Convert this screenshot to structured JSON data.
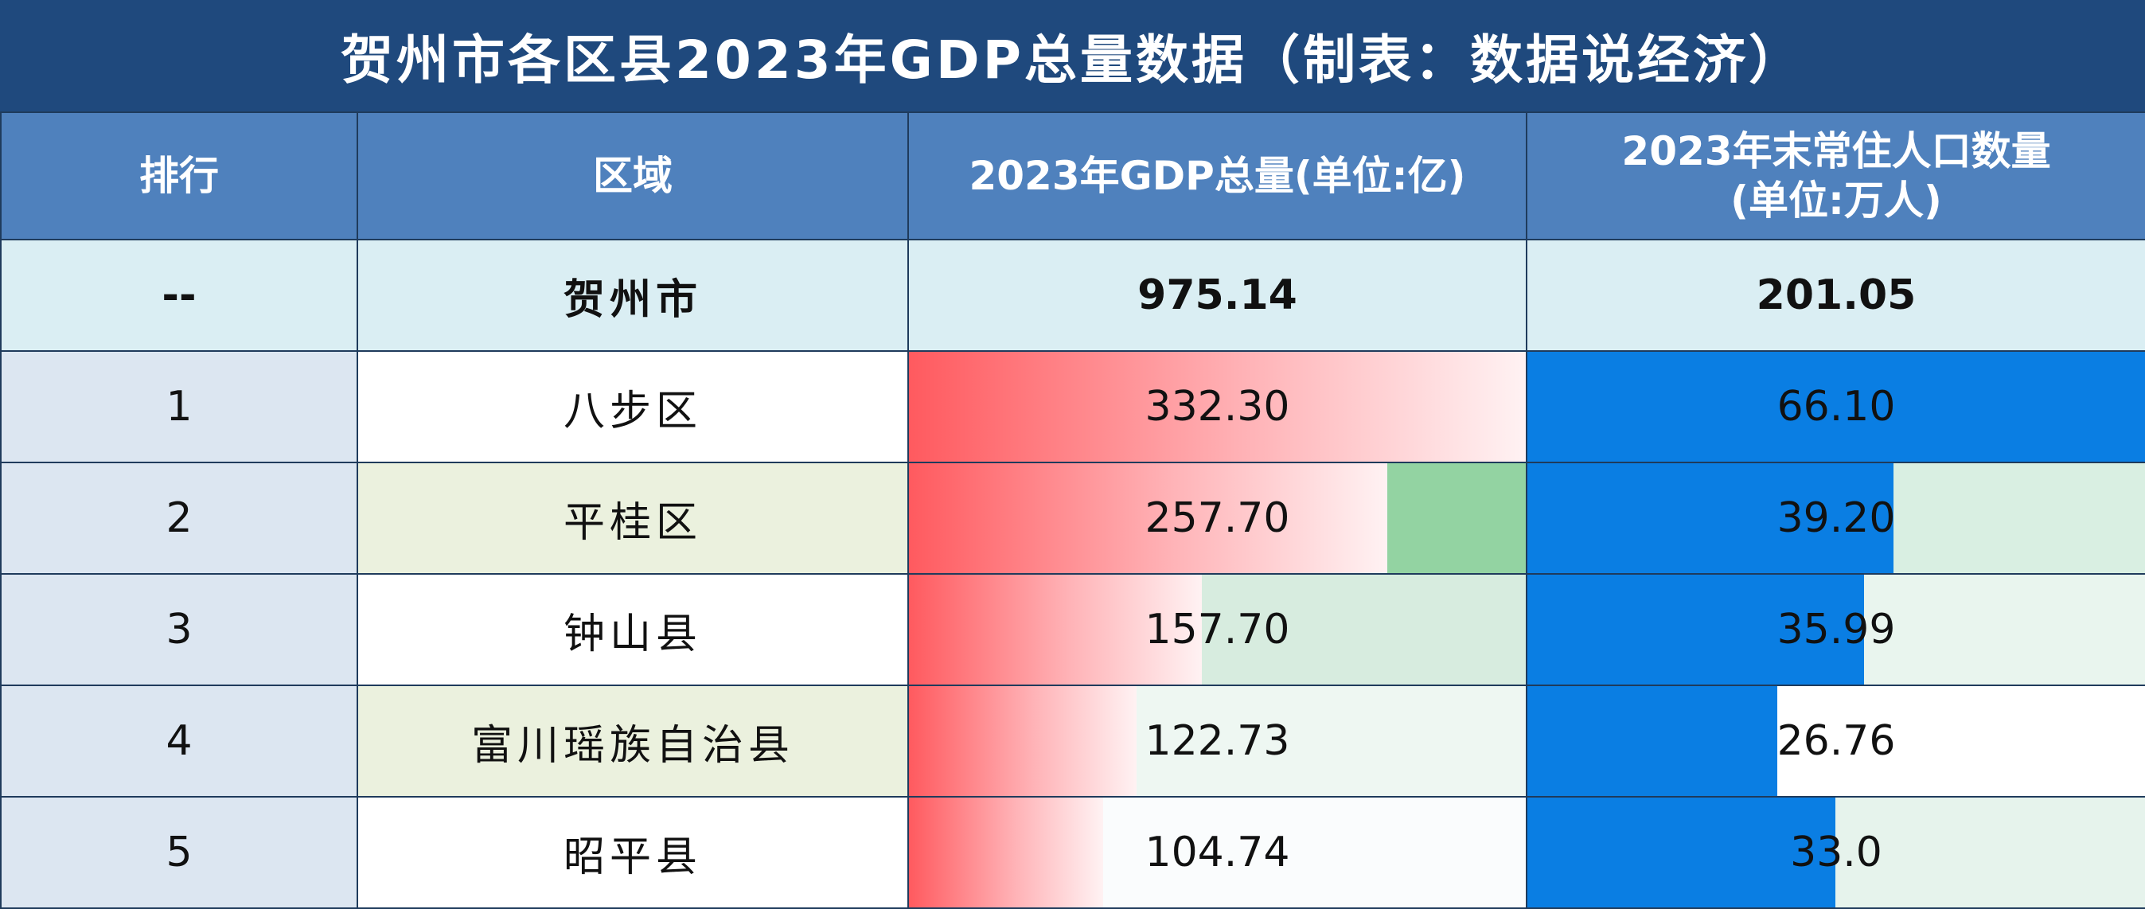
{
  "title": "贺州市各区县2023年GDP总量数据（制表：数据说经济）",
  "headers": {
    "rank": "排行",
    "region": "区域",
    "gdp": "2023年GDP总量(单位:亿)",
    "pop_line1": "2023年末常住人口数量",
    "pop_line2": "(单位:万人)"
  },
  "total": {
    "rank": "--",
    "region": "贺州市",
    "gdp": "975.14",
    "pop": "201.05"
  },
  "rows": [
    {
      "rank": "1",
      "region": "八步区",
      "gdp": "332.30",
      "pop": "66.10",
      "gdp_bg": "#ffffff",
      "pop_bg": "#ffffff"
    },
    {
      "rank": "2",
      "region": "平桂区",
      "gdp": "257.70",
      "pop": "39.20",
      "gdp_bg": "#93d3a2",
      "pop_bg": "#d9efe2"
    },
    {
      "rank": "3",
      "region": "钟山县",
      "gdp": "157.70",
      "pop": "35.99",
      "gdp_bg": "#d7ecdf",
      "pop_bg": "#e9f5ee"
    },
    {
      "rank": "4",
      "region": "富川瑶族自治县",
      "gdp": "122.73",
      "pop": "26.76",
      "gdp_bg": "#eef7f2",
      "pop_bg": "#ffffff"
    },
    {
      "rank": "5",
      "region": "昭平县",
      "gdp": "104.74",
      "pop": "33.0",
      "gdp_bg": "#fafcfd",
      "pop_bg": "#e6f3ec"
    }
  ],
  "chart_data": {
    "type": "table",
    "title": "贺州市各区县2023年GDP总量数据（制表：数据说经济）",
    "columns": [
      "排行",
      "区域",
      "2023年GDP总量(单位:亿)",
      "2023年末常住人口数量(单位:万人)"
    ],
    "total": {
      "region": "贺州市",
      "gdp": 975.14,
      "population": 201.05
    },
    "categories": [
      "八步区",
      "平桂区",
      "钟山县",
      "富川瑶族自治县",
      "昭平县"
    ],
    "series": [
      {
        "name": "2023年GDP总量(单位:亿)",
        "values": [
          332.3,
          257.7,
          157.7,
          122.73,
          104.74
        ]
      },
      {
        "name": "2023年末常住人口数量(单位:万人)",
        "values": [
          66.1,
          39.2,
          35.99,
          26.76,
          33.0
        ]
      }
    ]
  }
}
